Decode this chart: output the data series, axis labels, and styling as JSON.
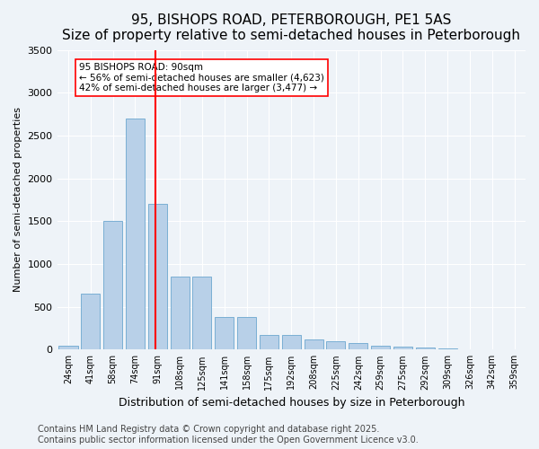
{
  "title": "95, BISHOPS ROAD, PETERBOROUGH, PE1 5AS",
  "subtitle": "Size of property relative to semi-detached houses in Peterborough",
  "xlabel": "Distribution of semi-detached houses by size in Peterborough",
  "ylabel": "Number of semi-detached properties",
  "categories": [
    "24sqm",
    "41sqm",
    "58sqm",
    "74sqm",
    "91sqm",
    "108sqm",
    "125sqm",
    "141sqm",
    "158sqm",
    "175sqm",
    "192sqm",
    "208sqm",
    "225sqm",
    "242sqm",
    "259sqm",
    "275sqm",
    "292sqm",
    "309sqm",
    "326sqm",
    "342sqm",
    "359sqm"
  ],
  "values": [
    50,
    650,
    1500,
    2700,
    1700,
    850,
    850,
    380,
    380,
    175,
    175,
    120,
    100,
    75,
    50,
    30,
    20,
    10,
    5,
    2,
    1
  ],
  "bar_color": "#b8d0e8",
  "bar_edge_color": "#7aafd4",
  "vline_x_index": 4,
  "vline_color": "red",
  "annotation_text": "95 BISHOPS ROAD: 90sqm\n← 56% of semi-detached houses are smaller (4,623)\n42% of semi-detached houses are larger (3,477) →",
  "annotation_box_color": "white",
  "annotation_box_edge_color": "red",
  "ylim": [
    0,
    3500
  ],
  "yticks": [
    0,
    500,
    1000,
    1500,
    2000,
    2500,
    3000,
    3500
  ],
  "background_color": "#eef3f8",
  "plot_bg_color": "#eef3f8",
  "footer": "Contains HM Land Registry data © Crown copyright and database right 2025.\nContains public sector information licensed under the Open Government Licence v3.0.",
  "title_fontsize": 11,
  "subtitle_fontsize": 10,
  "xlabel_fontsize": 9,
  "ylabel_fontsize": 8,
  "footer_fontsize": 7
}
